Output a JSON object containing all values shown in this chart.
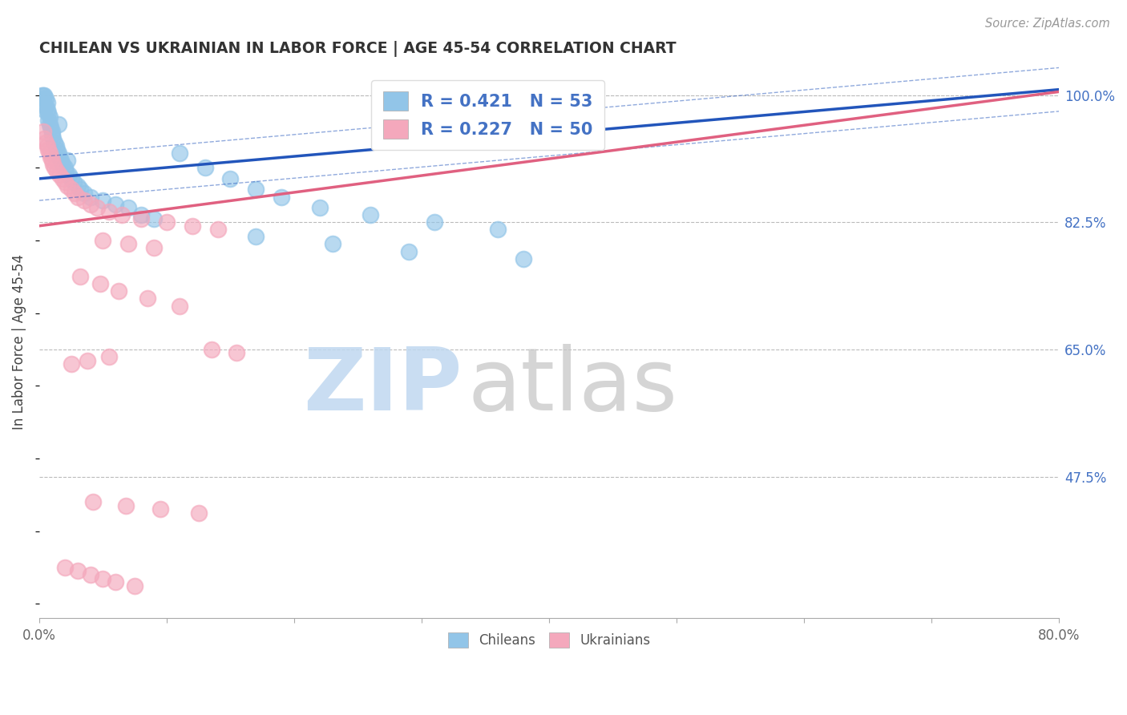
{
  "title": "CHILEAN VS UKRAINIAN IN LABOR FORCE | AGE 45-54 CORRELATION CHART",
  "source": "Source: ZipAtlas.com",
  "ylabel": "In Labor Force | Age 45-54",
  "xlim": [
    0.0,
    80.0
  ],
  "ylim": [
    28.0,
    104.0
  ],
  "ytick_values": [
    47.5,
    65.0,
    82.5,
    100.0
  ],
  "xtick_values": [
    0.0,
    10.0,
    20.0,
    30.0,
    40.0,
    50.0,
    60.0,
    70.0,
    80.0
  ],
  "chilean_R": 0.421,
  "chilean_N": 53,
  "ukrainian_R": 0.227,
  "ukrainian_N": 50,
  "chilean_color": "#92c5e8",
  "ukrainian_color": "#f4a8bc",
  "chilean_line_color": "#2255bb",
  "ukrainian_line_color": "#e06080",
  "chilean_x": [
    0.2,
    0.3,
    0.3,
    0.4,
    0.5,
    0.5,
    0.6,
    0.6,
    0.7,
    0.7,
    0.8,
    0.9,
    1.0,
    1.0,
    1.1,
    1.2,
    1.3,
    1.4,
    1.5,
    1.6,
    1.7,
    1.8,
    2.0,
    2.1,
    2.3,
    2.5,
    2.7,
    3.0,
    3.2,
    3.5,
    4.0,
    5.0,
    6.0,
    7.0,
    8.0,
    9.0,
    11.0,
    13.0,
    15.0,
    17.0,
    19.0,
    22.0,
    26.0,
    31.0,
    36.0,
    17.0,
    23.0,
    29.0,
    38.0,
    0.4,
    0.8,
    1.5,
    2.2
  ],
  "chilean_y": [
    100.0,
    100.0,
    99.5,
    100.0,
    99.5,
    98.5,
    99.0,
    98.0,
    97.5,
    96.5,
    96.0,
    95.5,
    95.0,
    94.5,
    94.0,
    93.5,
    93.0,
    92.5,
    92.0,
    91.5,
    91.0,
    90.5,
    90.0,
    89.5,
    89.0,
    88.5,
    88.0,
    87.5,
    87.0,
    86.5,
    86.0,
    85.5,
    85.0,
    84.5,
    83.5,
    83.0,
    92.0,
    90.0,
    88.5,
    87.0,
    86.0,
    84.5,
    83.5,
    82.5,
    81.5,
    80.5,
    79.5,
    78.5,
    77.5,
    98.0,
    97.0,
    96.0,
    91.0
  ],
  "ukrainian_x": [
    0.3,
    0.4,
    0.5,
    0.6,
    0.7,
    0.8,
    0.9,
    1.0,
    1.1,
    1.2,
    1.4,
    1.6,
    1.8,
    2.0,
    2.2,
    2.5,
    2.8,
    3.0,
    3.5,
    4.0,
    4.5,
    5.5,
    6.5,
    8.0,
    10.0,
    12.0,
    14.0,
    5.0,
    7.0,
    9.0,
    3.2,
    4.8,
    6.2,
    8.5,
    11.0,
    13.5,
    15.5,
    5.5,
    3.8,
    2.5,
    4.2,
    6.8,
    9.5,
    12.5,
    2.0,
    3.0,
    4.0,
    5.0,
    6.0,
    7.5
  ],
  "ukrainian_y": [
    95.0,
    94.0,
    93.5,
    93.0,
    92.5,
    92.0,
    91.5,
    91.0,
    90.5,
    90.0,
    89.5,
    89.0,
    88.5,
    88.0,
    87.5,
    87.0,
    86.5,
    86.0,
    85.5,
    85.0,
    84.5,
    84.0,
    83.5,
    83.0,
    82.5,
    82.0,
    81.5,
    80.0,
    79.5,
    79.0,
    75.0,
    74.0,
    73.0,
    72.0,
    71.0,
    65.0,
    64.5,
    64.0,
    63.5,
    63.0,
    44.0,
    43.5,
    43.0,
    42.5,
    35.0,
    34.5,
    34.0,
    33.5,
    33.0,
    32.5
  ],
  "blue_line_x0": 0.0,
  "blue_line_y0": 88.5,
  "blue_line_x1": 75.0,
  "blue_line_y1": 100.0,
  "pink_line_x0": 0.0,
  "pink_line_y0": 82.0,
  "pink_line_x1": 78.0,
  "pink_line_y1": 100.0,
  "watermark_zip_color": "#c0d8f0",
  "watermark_atlas_color": "#c8c8c8"
}
